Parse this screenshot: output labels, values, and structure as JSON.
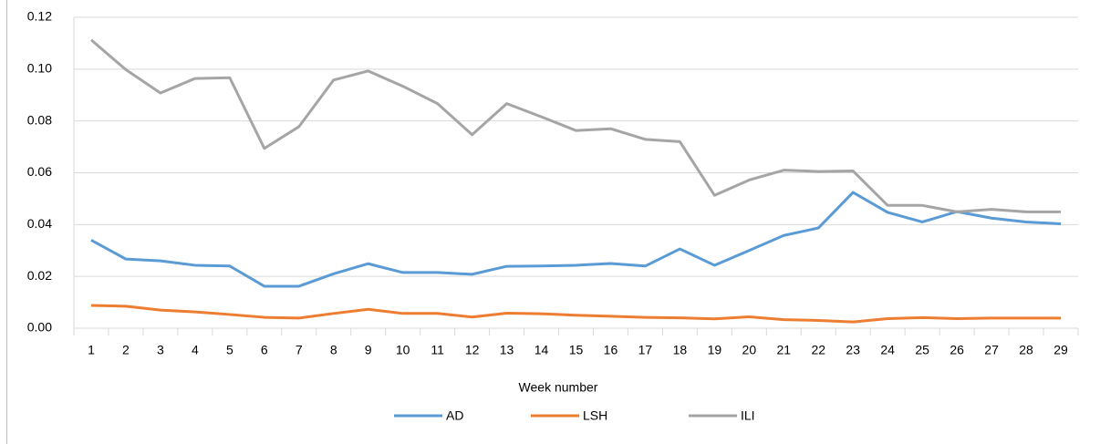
{
  "chart_data": {
    "type": "line",
    "x_label": "Week number",
    "categories": [
      1,
      2,
      3,
      4,
      5,
      6,
      7,
      8,
      9,
      10,
      11,
      12,
      13,
      14,
      15,
      16,
      17,
      18,
      19,
      20,
      21,
      22,
      23,
      24,
      25,
      26,
      27,
      28,
      29
    ],
    "series": [
      {
        "name": "AD",
        "color": "#5b9bd5",
        "values": [
          0.034,
          0.0267,
          0.026,
          0.0243,
          0.024,
          0.0162,
          0.0162,
          0.021,
          0.0249,
          0.0215,
          0.0215,
          0.0208,
          0.0239,
          0.024,
          0.0243,
          0.025,
          0.024,
          0.0306,
          0.0243,
          0.03,
          0.0358,
          0.0387,
          0.0524,
          0.0447,
          0.041,
          0.045,
          0.0425,
          0.041,
          0.0403
        ]
      },
      {
        "name": "LSH",
        "color": "#ed7d31",
        "values": [
          0.0088,
          0.0085,
          0.007,
          0.0063,
          0.0053,
          0.0042,
          0.0039,
          0.0057,
          0.0073,
          0.0057,
          0.0057,
          0.0043,
          0.0058,
          0.0056,
          0.005,
          0.0046,
          0.0042,
          0.004,
          0.0036,
          0.0044,
          0.0033,
          0.003,
          0.0024,
          0.0037,
          0.0041,
          0.0037,
          0.0039,
          0.0039,
          0.0039
        ]
      },
      {
        "name": "ILI",
        "color": "#a5a5a5",
        "values": [
          0.1113,
          0.0998,
          0.0908,
          0.0964,
          0.0967,
          0.0694,
          0.0778,
          0.0958,
          0.0993,
          0.0934,
          0.0867,
          0.0747,
          0.0867,
          0.0816,
          0.0763,
          0.077,
          0.0729,
          0.072,
          0.0513,
          0.0572,
          0.061,
          0.0605,
          0.0607,
          0.0474,
          0.0474,
          0.0449,
          0.0459,
          0.0449,
          0.0449
        ]
      }
    ],
    "ylim": [
      0,
      0.12
    ],
    "yticks": [
      {
        "value": 0,
        "label": "0.00"
      },
      0.02,
      0.04,
      0.06,
      0.08,
      {
        "value": 0.1,
        "label": "0.10"
      },
      0.12
    ],
    "grid": true,
    "legend": "bottom"
  }
}
